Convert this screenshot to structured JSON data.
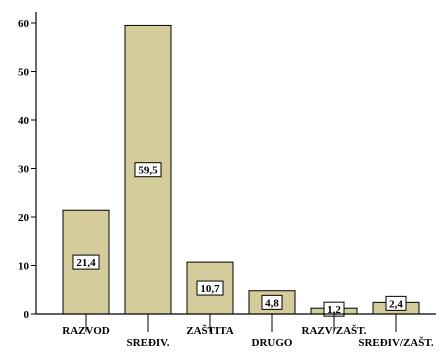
{
  "chart_data": {
    "type": "bar",
    "categories": [
      "RAZVOD",
      "SREĐIV.",
      "ZAŠTITA",
      "DRUGO",
      "RAZV/ZAŠT.",
      "SREĐIV/ZAŠT."
    ],
    "values": [
      21.4,
      59.5,
      10.7,
      4.8,
      1.2,
      2.4
    ],
    "value_labels": [
      "21,4",
      "59,5",
      "10,7",
      "4,8",
      "1,2",
      "2,4"
    ],
    "yticks": [
      0,
      10,
      20,
      30,
      40,
      50,
      60
    ],
    "ylim": [
      0,
      62
    ],
    "grid": false,
    "bar_color": "#d4cc9a",
    "title": "",
    "xlabel": "",
    "ylabel": ""
  }
}
